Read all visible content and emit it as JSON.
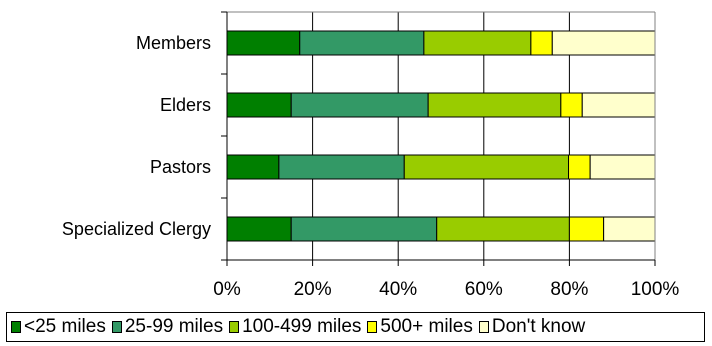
{
  "chart_data": {
    "type": "bar",
    "orientation": "horizontal",
    "stacked": "percent",
    "categories": [
      "Members",
      "Elders",
      "Pastors",
      "Specialized Clergy"
    ],
    "series": [
      {
        "name": "<25 miles",
        "color": "#007f00",
        "values": [
          17,
          15,
          12,
          15
        ]
      },
      {
        "name": "25-99 miles",
        "color": "#339966",
        "values": [
          29,
          32,
          29,
          34
        ]
      },
      {
        "name": "100-499 miles",
        "color": "#99cc00",
        "values": [
          25,
          31,
          38,
          31
        ]
      },
      {
        "name": "500+ miles",
        "color": "#ffff00",
        "values": [
          5,
          5,
          5,
          8
        ]
      },
      {
        "name": "Don't know",
        "color": "#ffffcc",
        "values": [
          24,
          17,
          15,
          12
        ]
      }
    ],
    "x_ticks": [
      "0%",
      "20%",
      "40%",
      "60%",
      "80%",
      "100%"
    ],
    "xlim": [
      0,
      100
    ],
    "grid": true,
    "legend_position": "bottom",
    "title": "",
    "xlabel": "",
    "ylabel": ""
  }
}
